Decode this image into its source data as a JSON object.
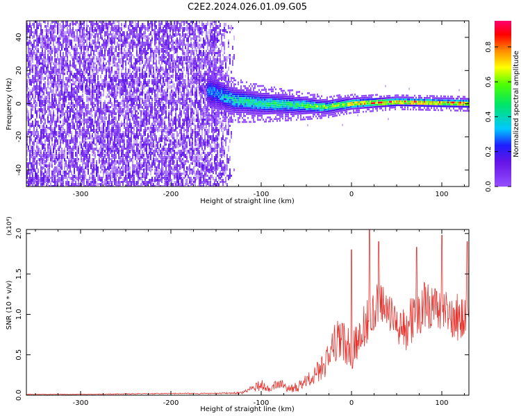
{
  "title": "C2E2.2024.026.01.09.G05",
  "colors": {
    "snr_line": "#e8302a",
    "axis": "#000000"
  },
  "chart_data": [
    {
      "type": "heatmap",
      "title": "C2E2.2024.026.01.09.G05",
      "xlabel": "Height of straight line (km)",
      "ylabel": "Frequency (Hz)",
      "xlim": [
        -360,
        130
      ],
      "ylim": [
        -50,
        50
      ],
      "xticks": [
        -300,
        -200,
        -100,
        0,
        100
      ],
      "yticks": [
        -40,
        -20,
        0,
        20,
        40
      ],
      "colormap": "rainbow (purple → red)",
      "colorbar": {
        "label": "Normalized spectral amplitude",
        "ticks": [
          0.0,
          0.2,
          0.4,
          0.6,
          0.8
        ],
        "range": [
          0.0,
          0.95
        ]
      },
      "regions": [
        {
          "x_from": -360,
          "x_to": -130,
          "description": "broadband noise",
          "amplitude_range": [
            0.0,
            0.15
          ]
        },
        {
          "x_from": -160,
          "x_to": 130,
          "description": "signal band",
          "center_freq": [
            8,
            2,
            0,
            -1,
            -2,
            0,
            1,
            0
          ],
          "center_x": [
            -160,
            -130,
            -100,
            -60,
            -30,
            0,
            50,
            130
          ],
          "half_width": [
            8,
            6,
            5,
            4,
            3,
            2.5,
            2,
            2
          ],
          "peak_amplitude": [
            0.3,
            0.45,
            0.5,
            0.55,
            0.65,
            0.8,
            0.9,
            0.9
          ]
        }
      ]
    },
    {
      "type": "line",
      "xlabel": "Height of straight line (km)",
      "ylabel": "SNR (10 * v/v)",
      "y_multiplier": "(x10⁴)",
      "xlim": [
        -360,
        130
      ],
      "ylim": [
        0,
        2.05
      ],
      "xticks": [
        -300,
        -200,
        -100,
        0,
        100
      ],
      "yticks": [
        0.0,
        0.5,
        1.0,
        1.5,
        2.0
      ],
      "series": [
        {
          "x": [
            -360,
            -300,
            -200,
            -150,
            -120,
            -105,
            -100,
            -90,
            -80,
            -70,
            -60,
            -50,
            -40,
            -30,
            -20,
            -10,
            0,
            10,
            20,
            30,
            40,
            50,
            60,
            70,
            80,
            90,
            100,
            110,
            120,
            130
          ],
          "y": [
            0.01,
            0.01,
            0.02,
            0.02,
            0.03,
            0.1,
            0.12,
            0.08,
            0.15,
            0.07,
            0.1,
            0.15,
            0.25,
            0.35,
            0.6,
            0.7,
            0.5,
            0.7,
            1.05,
            1.1,
            1.0,
            0.85,
            0.8,
            0.95,
            1.1,
            1.05,
            0.95,
            0.95,
            0.9,
            1.2
          ],
          "noise": [
            0.005,
            0.005,
            0.008,
            0.01,
            0.02,
            0.08,
            0.09,
            0.06,
            0.08,
            0.06,
            0.08,
            0.12,
            0.15,
            0.2,
            0.3,
            0.35,
            0.3,
            0.35,
            0.45,
            0.4,
            0.35,
            0.3,
            0.35,
            0.4,
            0.4,
            0.4,
            0.4,
            0.4,
            0.4,
            0.45
          ],
          "peaks": [
            {
              "x": 0,
              "y": 1.8
            },
            {
              "x": 20,
              "y": 2.05
            },
            {
              "x": 30,
              "y": 1.9
            },
            {
              "x": 72,
              "y": 1.83
            },
            {
              "x": 100,
              "y": 1.98
            },
            {
              "x": 128,
              "y": 1.9
            }
          ]
        }
      ]
    }
  ]
}
